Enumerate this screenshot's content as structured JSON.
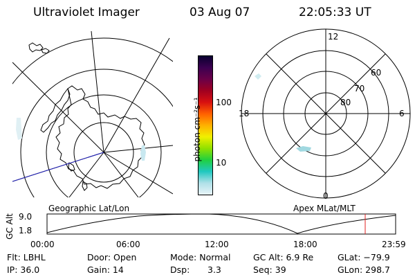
{
  "header": {
    "instrument": "Ultraviolet Imager",
    "date": "03 Aug 07",
    "time": "22:05:33 UT"
  },
  "colorbar": {
    "unit_label": "photon cm⁻²s⁻¹",
    "ticks": [
      "100",
      "10"
    ],
    "colors": [
      "#0a0030",
      "#3c0050",
      "#6a0048",
      "#a00020",
      "#d81010",
      "#ff6000",
      "#ffb000",
      "#f0f000",
      "#90e000",
      "#20d040",
      "#20c8c0",
      "#b0e0e8",
      "#e8f4f8"
    ]
  },
  "left_panel": {
    "caption": "Geographic Lat/Lon"
  },
  "right_panel": {
    "caption": "Apex MLat/MLT",
    "mlt_labels": {
      "top": "12",
      "left": "18",
      "right": "6",
      "bottom": "0"
    },
    "lat_labels": [
      "60",
      "70",
      "80"
    ]
  },
  "altitude_plot": {
    "ylabel": "GC Alt",
    "y_max": "9.0",
    "y_min": "1.8",
    "x_ticks": [
      "00:00",
      "06:00",
      "12:00",
      "18:00",
      "23:59"
    ],
    "current_marker_time": "22:05",
    "marker_color": "#e02020"
  },
  "info": {
    "row1": {
      "filter": "Flt: LBHL",
      "door": "Door: Open",
      "mode": "Mode: Normal",
      "gc_alt": "GC Alt: 6.9 Re",
      "glat": "GLat: −79.9"
    },
    "row2": {
      "ip": "IP: 36.0",
      "gain": "Gain: 14",
      "dsp_label": "Dsp:",
      "dsp_value": "3.3",
      "seq": "Seq: 39",
      "glon": "GLon: 298.7"
    }
  }
}
